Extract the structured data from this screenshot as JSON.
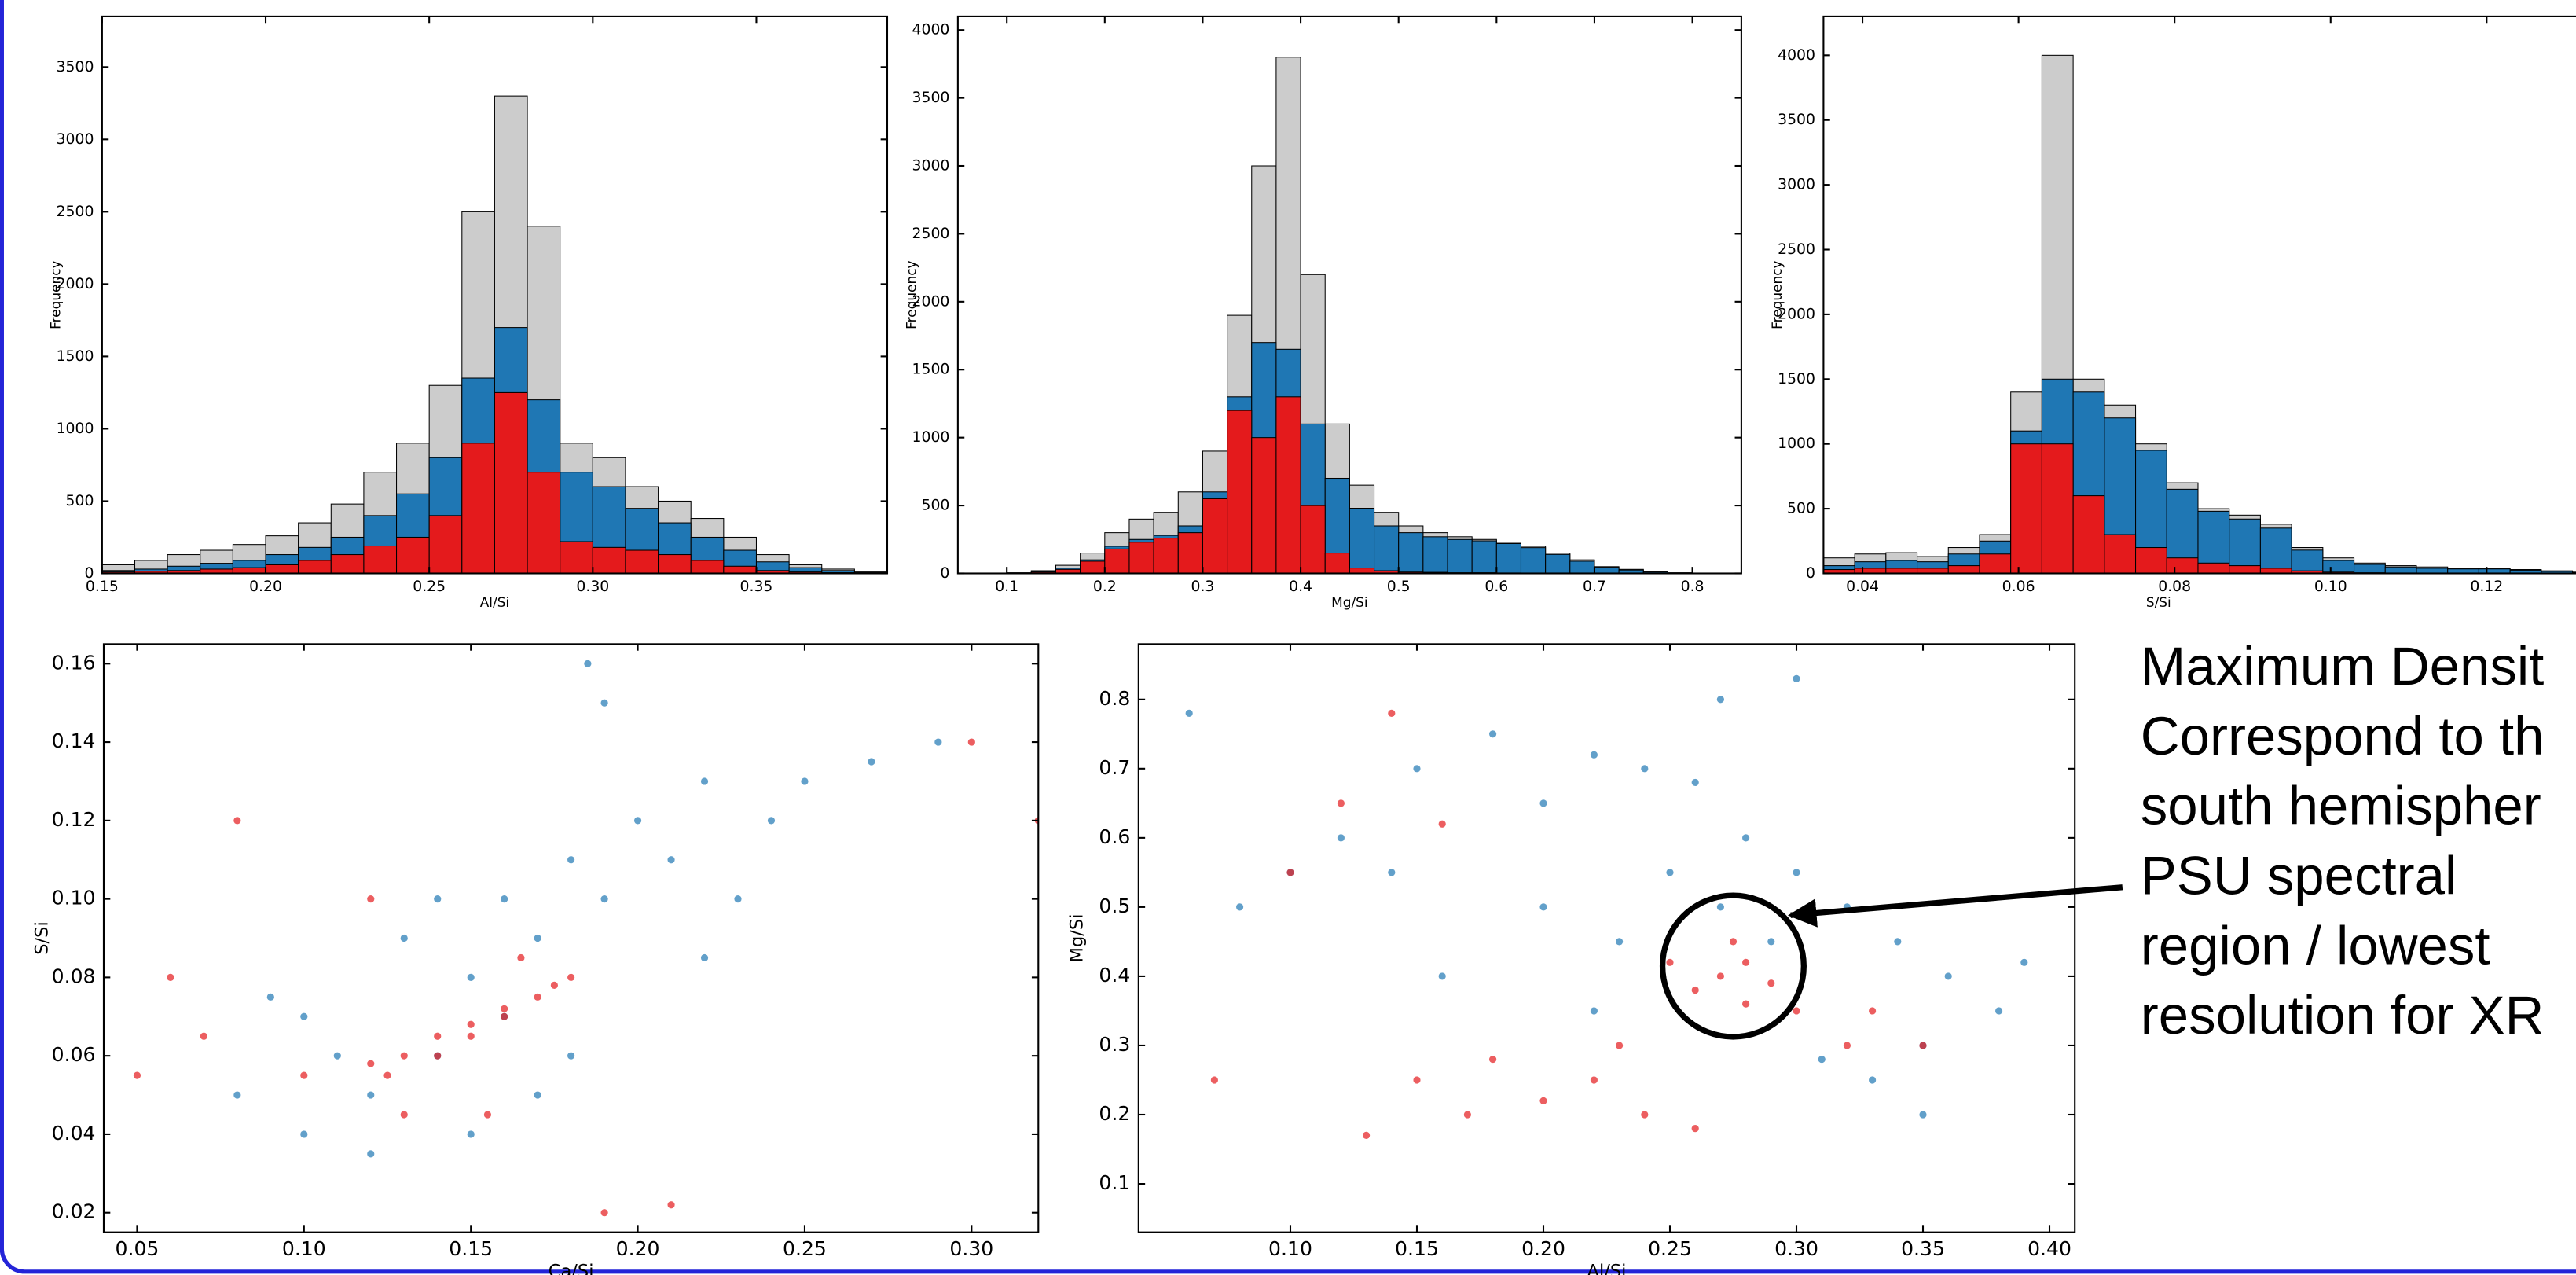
{
  "chart_data": [
    {
      "type": "histogram",
      "xlabel": "Al/Si",
      "ylabel": "Frequency",
      "bins": [
        0.15,
        0.16,
        0.17,
        0.18,
        0.19,
        0.2,
        0.21,
        0.22,
        0.23,
        0.24,
        0.25,
        0.26,
        0.27,
        0.28,
        0.29,
        0.3,
        0.31,
        0.32,
        0.33,
        0.34,
        0.35,
        0.36,
        0.37,
        0.38,
        0.39
      ],
      "series": [
        {
          "color": "#cccccc",
          "values": [
            60,
            90,
            130,
            160,
            200,
            260,
            350,
            480,
            700,
            900,
            1300,
            2500,
            3300,
            2400,
            900,
            800,
            600,
            500,
            380,
            250,
            130,
            60,
            30,
            10
          ]
        },
        {
          "color": "#1f77b4",
          "values": [
            20,
            30,
            50,
            70,
            90,
            130,
            180,
            250,
            400,
            550,
            800,
            1350,
            1700,
            1200,
            700,
            600,
            450,
            350,
            250,
            160,
            80,
            40,
            20,
            5
          ]
        },
        {
          "color": "#e41a1c",
          "values": [
            10,
            15,
            20,
            30,
            40,
            60,
            90,
            130,
            190,
            250,
            400,
            900,
            1250,
            700,
            220,
            180,
            160,
            130,
            90,
            50,
            20,
            10,
            5,
            0
          ]
        }
      ],
      "xlim": [
        0.15,
        0.39
      ],
      "xticks": [
        0.15,
        {
          "value": 0.2,
          "label": "0.20"
        },
        0.25,
        {
          "value": 0.3,
          "label": "0.30"
        },
        0.35
      ],
      "ylim": [
        0,
        3850
      ],
      "yticks": [
        0,
        500,
        1000,
        1500,
        2000,
        2500,
        3000,
        3500
      ]
    },
    {
      "type": "histogram",
      "xlabel": "Mg/Si",
      "ylabel": "Frequency",
      "bins": [
        0.05,
        0.075,
        0.1,
        0.125,
        0.15,
        0.175,
        0.2,
        0.225,
        0.25,
        0.275,
        0.3,
        0.325,
        0.35,
        0.375,
        0.4,
        0.425,
        0.45,
        0.475,
        0.5,
        0.525,
        0.55,
        0.575,
        0.6,
        0.625,
        0.65,
        0.675,
        0.7,
        0.725,
        0.75,
        0.775,
        0.8,
        0.825,
        0.85
      ],
      "series": [
        {
          "color": "#cccccc",
          "values": [
            0,
            0,
            5,
            20,
            60,
            150,
            300,
            400,
            450,
            600,
            900,
            1900,
            3000,
            3800,
            2200,
            1100,
            650,
            450,
            350,
            300,
            270,
            250,
            230,
            200,
            150,
            100,
            50,
            30,
            15,
            5,
            0,
            0
          ]
        },
        {
          "color": "#1f77b4",
          "values": [
            0,
            0,
            3,
            15,
            40,
            100,
            200,
            250,
            280,
            350,
            600,
            1300,
            1700,
            1650,
            1100,
            700,
            480,
            350,
            300,
            270,
            250,
            240,
            220,
            190,
            140,
            90,
            45,
            25,
            10,
            3,
            0,
            0
          ]
        },
        {
          "color": "#e41a1c",
          "values": [
            0,
            0,
            2,
            10,
            30,
            90,
            180,
            230,
            260,
            300,
            550,
            1200,
            1000,
            1300,
            500,
            150,
            40,
            20,
            10,
            8,
            5,
            5,
            3,
            2,
            0,
            0,
            0,
            0,
            0,
            0,
            0,
            0
          ]
        }
      ],
      "xlim": [
        0.05,
        0.85
      ],
      "xticks": [
        0.1,
        0.2,
        0.3,
        0.4,
        0.5,
        0.6,
        0.7,
        0.8
      ],
      "ylim": [
        0,
        4100
      ],
      "yticks": [
        0,
        500,
        1000,
        1500,
        2000,
        2500,
        3000,
        3500,
        4000
      ]
    },
    {
      "type": "histogram",
      "xlabel": "S/Si",
      "ylabel": "Frequency",
      "bins": [
        0.035,
        0.039,
        0.043,
        0.047,
        0.051,
        0.055,
        0.059,
        0.063,
        0.067,
        0.071,
        0.075,
        0.079,
        0.083,
        0.087,
        0.091,
        0.095,
        0.099,
        0.103,
        0.107,
        0.111,
        0.115,
        0.119,
        0.123,
        0.127,
        0.131,
        0.135
      ],
      "series": [
        {
          "color": "#cccccc",
          "values": [
            120,
            150,
            160,
            130,
            200,
            300,
            1400,
            4000,
            1500,
            1300,
            1000,
            700,
            500,
            450,
            380,
            200,
            120,
            80,
            60,
            50,
            40,
            40,
            30,
            20,
            10
          ]
        },
        {
          "color": "#1f77b4",
          "values": [
            60,
            90,
            100,
            90,
            150,
            250,
            1100,
            1500,
            1400,
            1200,
            950,
            650,
            480,
            420,
            350,
            180,
            100,
            70,
            50,
            40,
            35,
            35,
            25,
            15,
            8
          ]
        },
        {
          "color": "#e41a1c",
          "values": [
            30,
            40,
            40,
            40,
            60,
            150,
            1000,
            1000,
            600,
            300,
            200,
            120,
            80,
            60,
            40,
            20,
            10,
            5,
            3,
            2,
            1,
            1,
            0,
            0,
            0
          ]
        }
      ],
      "xlim": [
        0.035,
        0.135
      ],
      "xticks": [
        0.04,
        0.06,
        0.08,
        {
          "value": 0.1,
          "label": "0.10"
        },
        0.12
      ],
      "ylim": [
        0,
        4300
      ],
      "yticks": [
        0,
        500,
        1000,
        1500,
        2000,
        2500,
        3000,
        3500,
        4000
      ]
    },
    {
      "type": "scatter",
      "xlabel": "Ca/Si",
      "ylabel": "S/Si",
      "series": [
        {
          "color": "#1f77b4",
          "x": [
            0.08,
            0.1,
            0.12,
            0.13,
            0.14,
            0.15,
            0.16,
            0.16,
            0.17,
            0.18,
            0.19,
            0.2,
            0.21,
            0.22,
            0.24,
            0.25,
            0.27,
            0.29,
            0.15,
            0.18,
            0.12,
            0.1,
            0.19,
            0.22,
            0.14,
            0.09,
            0.23,
            0.17,
            0.11,
            0.185
          ],
          "values": [
            0.05,
            0.07,
            0.05,
            0.09,
            0.06,
            0.08,
            0.07,
            0.1,
            0.09,
            0.11,
            0.1,
            0.12,
            0.11,
            0.13,
            0.12,
            0.13,
            0.135,
            0.14,
            0.04,
            0.06,
            0.035,
            0.04,
            0.15,
            0.085,
            0.1,
            0.075,
            0.1,
            0.05,
            0.06,
            0.16
          ]
        },
        {
          "color": "#e41a1c",
          "x": [
            0.12,
            0.13,
            0.14,
            0.15,
            0.16,
            0.17,
            0.18,
            0.125,
            0.14,
            0.15,
            0.16,
            0.175,
            0.06,
            0.07,
            0.08,
            0.12,
            0.1,
            0.13,
            0.19,
            0.21,
            0.3,
            0.32,
            0.05,
            0.155,
            0.165
          ],
          "values": [
            0.058,
            0.06,
            0.065,
            0.068,
            0.072,
            0.075,
            0.08,
            0.055,
            0.06,
            0.065,
            0.07,
            0.078,
            0.08,
            0.065,
            0.12,
            0.1,
            0.055,
            0.045,
            0.02,
            0.022,
            0.14,
            0.12,
            0.055,
            0.045,
            0.085
          ]
        }
      ],
      "xlim": [
        0.04,
        0.32
      ],
      "xticks": [
        0.05,
        {
          "value": 0.1,
          "label": "0.10"
        },
        0.15,
        {
          "value": 0.2,
          "label": "0.20"
        },
        0.25,
        {
          "value": 0.3,
          "label": "0.30"
        }
      ],
      "ylim": [
        0.015,
        0.165
      ],
      "yticks": [
        0.02,
        0.04,
        0.06,
        0.08,
        {
          "value": 0.1,
          "label": "0.10"
        },
        0.12,
        0.14,
        0.16
      ]
    },
    {
      "type": "scatter",
      "xlabel": "Al/Si",
      "ylabel": "Mg/Si",
      "series": [
        {
          "color": "#1f77b4",
          "x": [
            0.1,
            0.12,
            0.15,
            0.18,
            0.2,
            0.22,
            0.24,
            0.26,
            0.28,
            0.25,
            0.27,
            0.3,
            0.32,
            0.34,
            0.36,
            0.38,
            0.35,
            0.33,
            0.31,
            0.29,
            0.23,
            0.2,
            0.16,
            0.14,
            0.27,
            0.3,
            0.39,
            0.35,
            0.22,
            0.06,
            0.08
          ],
          "values": [
            0.55,
            0.6,
            0.7,
            0.75,
            0.65,
            0.72,
            0.7,
            0.68,
            0.6,
            0.55,
            0.5,
            0.55,
            0.5,
            0.45,
            0.4,
            0.35,
            0.3,
            0.25,
            0.28,
            0.45,
            0.45,
            0.5,
            0.4,
            0.55,
            0.8,
            0.83,
            0.42,
            0.2,
            0.35,
            0.78,
            0.5
          ]
        },
        {
          "color": "#e41a1c",
          "x": [
            0.27,
            0.28,
            0.26,
            0.275,
            0.29,
            0.25,
            0.28,
            0.3,
            0.32,
            0.22,
            0.2,
            0.18,
            0.24,
            0.26,
            0.17,
            0.15,
            0.13,
            0.1,
            0.12,
            0.14,
            0.33,
            0.35,
            0.23,
            0.07,
            0.16
          ],
          "values": [
            0.4,
            0.42,
            0.38,
            0.45,
            0.39,
            0.42,
            0.36,
            0.35,
            0.3,
            0.25,
            0.22,
            0.28,
            0.2,
            0.18,
            0.2,
            0.25,
            0.17,
            0.55,
            0.65,
            0.78,
            0.35,
            0.3,
            0.3,
            0.25,
            0.62
          ]
        }
      ],
      "xlim": [
        0.04,
        0.41
      ],
      "xticks": [
        {
          "value": 0.1,
          "label": "0.10"
        },
        0.15,
        {
          "value": 0.2,
          "label": "0.20"
        },
        0.25,
        {
          "value": 0.3,
          "label": "0.30"
        },
        0.35,
        {
          "value": 0.4,
          "label": "0.40"
        }
      ],
      "ylim": [
        0.03,
        0.88
      ],
      "yticks": [
        0.1,
        0.2,
        0.3,
        0.4,
        0.5,
        0.6,
        0.7,
        0.8
      ],
      "annotation": [
        "Maximum Densit",
        "Correspond to th",
        "south hemispher",
        "PSU spectral",
        "region / lowest",
        "resolution for XR"
      ]
    }
  ]
}
